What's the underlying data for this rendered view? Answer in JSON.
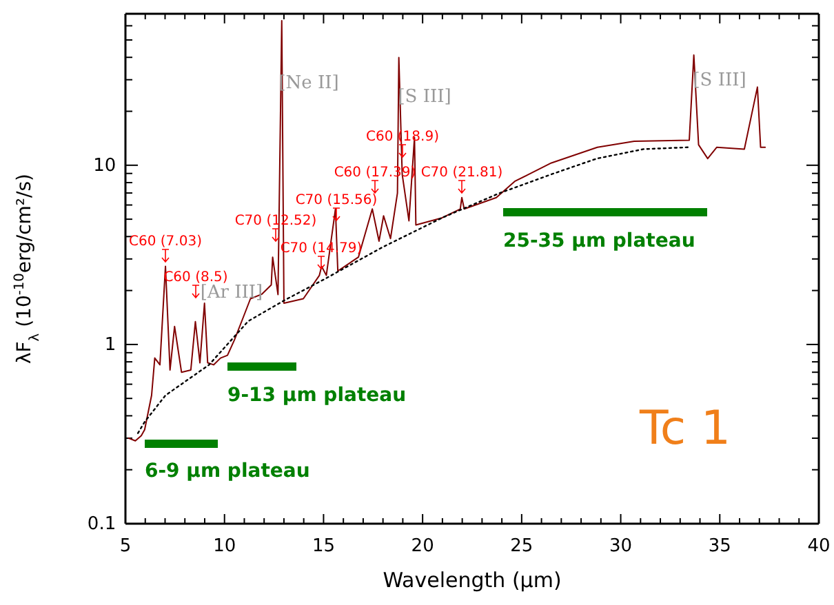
{
  "chart_data": {
    "type": "line",
    "xlabel": "Wavelength (μm)",
    "ylabel": "λF$_{λ}$ (10$^{-10}$erg/cm²/s)",
    "log": "y",
    "grid": false,
    "marker": "none",
    "xlim": [
      5,
      40
    ],
    "ylim": [
      0.1,
      70
    ],
    "xticks": [
      5,
      {
        "value": 6,
        "label": null
      },
      {
        "value": 7,
        "label": null
      },
      {
        "value": 8,
        "label": null
      },
      {
        "value": 9,
        "label": null
      },
      10,
      {
        "value": 11,
        "label": null
      },
      {
        "value": 12,
        "label": null
      },
      {
        "value": 13,
        "label": null
      },
      {
        "value": 14,
        "label": null
      },
      15,
      {
        "value": 16,
        "label": null
      },
      {
        "value": 17,
        "label": null
      },
      {
        "value": 18,
        "label": null
      },
      {
        "value": 19,
        "label": null
      },
      20,
      {
        "value": 21,
        "label": null
      },
      {
        "value": 22,
        "label": null
      },
      {
        "value": 23,
        "label": null
      },
      {
        "value": 24,
        "label": null
      },
      25,
      {
        "value": 26,
        "label": null
      },
      {
        "value": 27,
        "label": null
      },
      {
        "value": 28,
        "label": null
      },
      {
        "value": 29,
        "label": null
      },
      30,
      {
        "value": 31,
        "label": null
      },
      {
        "value": 32,
        "label": null
      },
      {
        "value": 33,
        "label": null
      },
      {
        "value": 34,
        "label": null
      },
      35,
      {
        "value": 36,
        "label": null
      },
      {
        "value": 37,
        "label": null
      },
      {
        "value": 38,
        "label": null
      },
      {
        "value": 39,
        "label": null
      },
      40
    ],
    "yticks": [
      0.1,
      {
        "value": 0.2,
        "label": null
      },
      {
        "value": 0.3,
        "label": null
      },
      {
        "value": 0.4,
        "label": null
      },
      {
        "value": 0.5,
        "label": null
      },
      {
        "value": 0.6,
        "label": null
      },
      {
        "value": 0.7,
        "label": null
      },
      {
        "value": 0.8,
        "label": null
      },
      {
        "value": 0.9,
        "label": null
      },
      1,
      {
        "value": 2,
        "label": null
      },
      {
        "value": 3,
        "label": null
      },
      {
        "value": 4,
        "label": null
      },
      {
        "value": 5,
        "label": null
      },
      {
        "value": 6,
        "label": null
      },
      {
        "value": 7,
        "label": null
      },
      {
        "value": 8,
        "label": null
      },
      {
        "value": 9,
        "label": null
      },
      10,
      {
        "value": 20,
        "label": null
      },
      {
        "value": 30,
        "label": null
      },
      {
        "value": 40,
        "label": null
      },
      {
        "value": 50,
        "label": null
      },
      {
        "value": 60,
        "label": null
      },
      {
        "value": 70,
        "label": null
      }
    ],
    "series": [
      {
        "color": "#800000",
        "line_style": "solid",
        "x": [
          5.16,
          5.5,
          5.8,
          5.97,
          6.32,
          6.48,
          6.74,
          7.02,
          7.25,
          7.48,
          7.83,
          8.3,
          8.53,
          8.76,
          8.99,
          9.15,
          9.45,
          9.8,
          10.15,
          10.5,
          10.96,
          11.31,
          11.89,
          12.36,
          12.43,
          12.7,
          12.89,
          13.0,
          13.98,
          14.79,
          14.9,
          15.14,
          15.6,
          15.72,
          16.76,
          17.46,
          17.8,
          18.03,
          18.38,
          18.73,
          18.8,
          18.97,
          19.31,
          19.59,
          19.66,
          20.94,
          21.9,
          21.98,
          22.1,
          23.72,
          24.65,
          26.5,
          28.82,
          30.68,
          33.46,
          33.69,
          33.93,
          34.39,
          34.85,
          36.24,
          36.9,
          37.06,
          37.29
        ],
        "values": [
          0.3,
          0.29,
          0.31,
          0.335,
          0.52,
          0.84,
          0.77,
          2.73,
          0.72,
          1.26,
          0.7,
          0.72,
          1.34,
          0.79,
          1.7,
          0.79,
          0.77,
          0.84,
          0.87,
          1.06,
          1.43,
          1.8,
          1.91,
          2.15,
          3.07,
          1.9,
          64,
          1.7,
          1.8,
          2.43,
          2.73,
          2.43,
          5.7,
          2.57,
          3.07,
          5.7,
          3.77,
          5.22,
          3.9,
          7.0,
          39.9,
          8.9,
          4.9,
          14.3,
          4.64,
          5.07,
          5.7,
          6.6,
          5.7,
          6.6,
          8.13,
          10.3,
          12.6,
          13.6,
          13.8,
          41.2,
          13.0,
          10.9,
          12.6,
          12.3,
          27.3,
          12.6,
          12.6
        ]
      },
      {
        "color": "#000000",
        "line_style": "dotted",
        "x": [
          5.63,
          5.97,
          7.02,
          9.22,
          11.2,
          13.05,
          15,
          18,
          21,
          23.9,
          26.5,
          28.8,
          31.15,
          33.46
        ],
        "values": [
          0.32,
          0.37,
          0.52,
          0.77,
          1.35,
          1.77,
          2.3,
          3.5,
          5.1,
          7.0,
          8.9,
          10.9,
          12.3,
          12.6
        ]
      }
    ],
    "annotations": [
      "C60 (7.03)",
      "C60 (8.5)",
      "C70 (12.52)",
      "C70 (14.79)",
      "C70 (15.56)",
      "C60 (17.39)",
      "C60 (18.9)",
      "C70 (21.81)",
      "[Ar III]",
      "[Ne II]",
      "[S III]",
      "[S III]",
      "6-9 µm plateau",
      "9-13 µm plateau",
      "25-35 µm plateau",
      "Tc 1"
    ]
  }
}
